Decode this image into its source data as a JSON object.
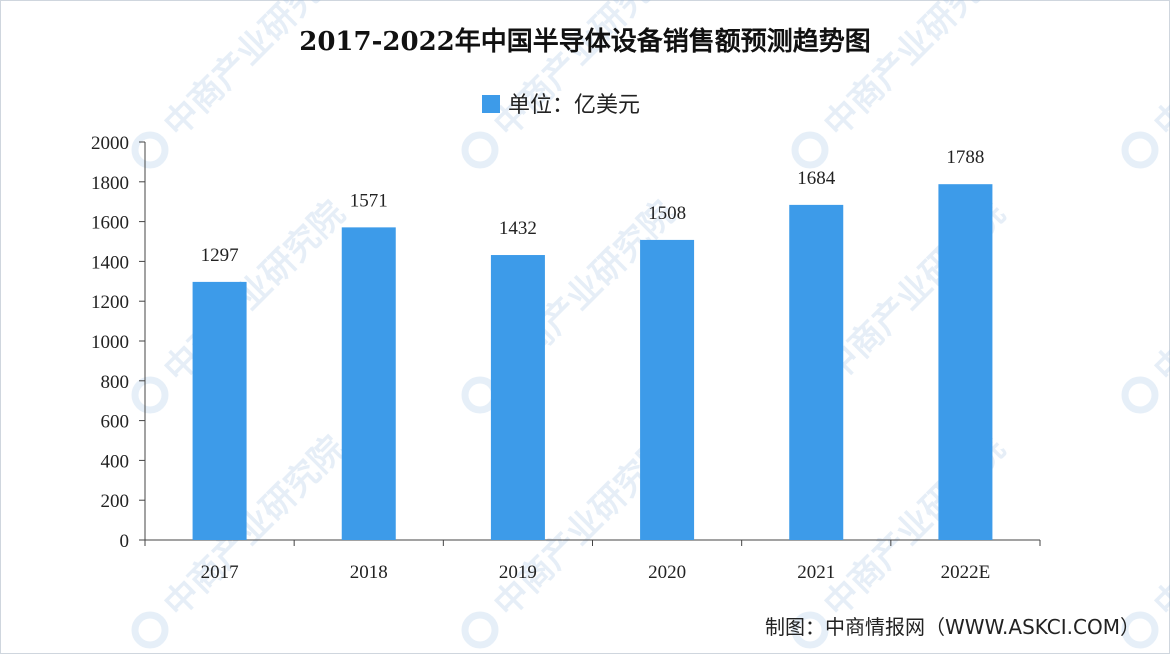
{
  "chart_data": {
    "type": "bar",
    "title": "2017-2022年中国半导体设备销售额预测趋势图",
    "legend": {
      "label": "单位：亿美元",
      "position": "top-center"
    },
    "categories": [
      "2017",
      "2018",
      "2019",
      "2020",
      "2021",
      "2022E"
    ],
    "series": [
      {
        "values": [
          1297,
          1571,
          1432,
          1508,
          1684,
          1788
        ]
      }
    ],
    "ylim": [
      0,
      2000
    ],
    "yticks": [
      0,
      200,
      400,
      600,
      800,
      1000,
      1200,
      1400,
      1600,
      1800,
      2000
    ],
    "data_labels": [
      "1297",
      "1571",
      "1432",
      "1508",
      "1684",
      "1788"
    ],
    "grid": false,
    "bar_color": "#3d9be9"
  },
  "source": "制图：中商情报网（WWW.ASKCI.COM）",
  "watermark": "中商产业研究院"
}
